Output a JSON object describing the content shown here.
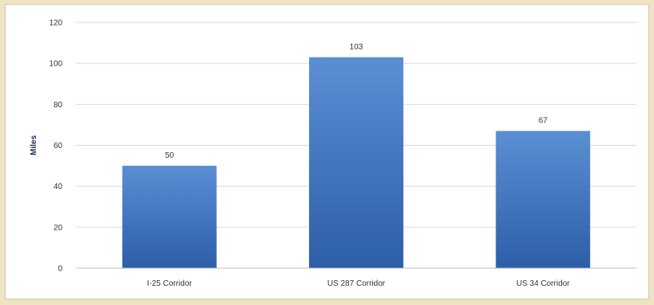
{
  "chart_data": {
    "type": "bar",
    "title": "",
    "xlabel": "",
    "ylabel": "Miles",
    "categories": [
      "I-25 Corridor",
      "US 287 Corridor",
      "US 34 Corridor"
    ],
    "values": [
      50,
      103,
      67
    ],
    "data_labels": [
      "50",
      "103",
      "67"
    ],
    "y_ticks": [
      "0",
      "20",
      "40",
      "60",
      "80",
      "100",
      "120"
    ],
    "ylim": [
      0,
      120
    ],
    "grid": true,
    "legend": "none",
    "colors": {
      "bar_top": "#5b8fd3",
      "bar_bottom": "#2d5ea8",
      "grid": "#d9d9d9",
      "background": "#efe3c4"
    }
  }
}
